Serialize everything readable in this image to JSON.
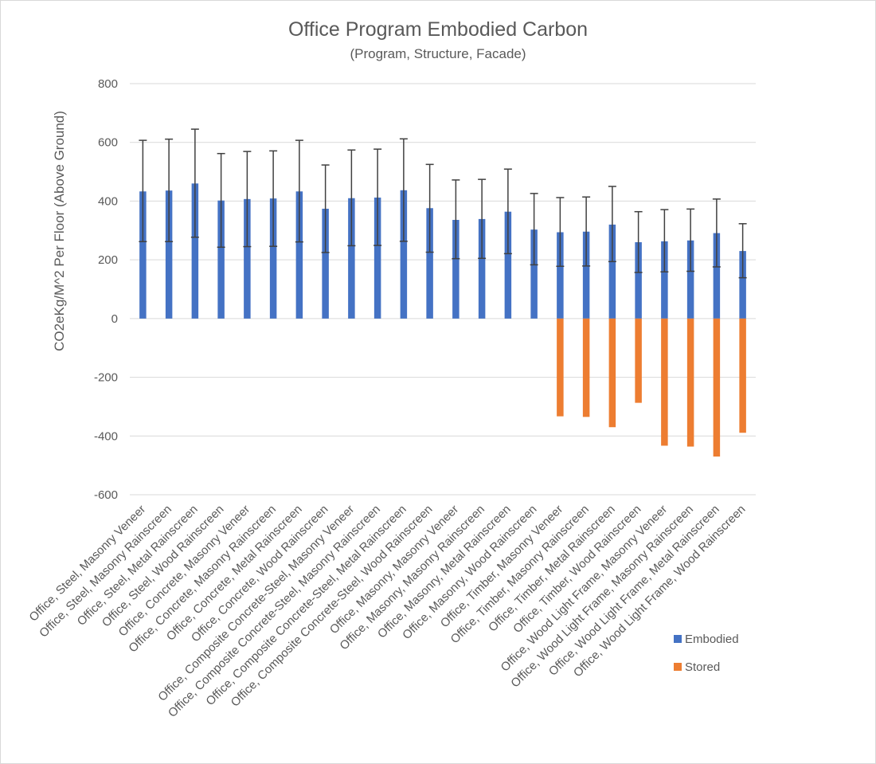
{
  "chart_data": {
    "type": "bar",
    "title": "Office Program Embodied Carbon",
    "subtitle": "(Program, Structure, Facade)",
    "xlabel": "",
    "ylabel": "CO2eKg/M^2 Per Floor (Above Ground)",
    "ylim": [
      -600,
      800
    ],
    "yticks": [
      -600,
      -400,
      -200,
      0,
      200,
      400,
      600,
      800
    ],
    "grid": true,
    "legend_position": "bottom-right",
    "categories": [
      "Office, Steel, Masonry Veneer",
      "Office, Steel, Masonry Rainscreen",
      "Office, Steel, Metal Rainscreen",
      "Office, Steel, Wood Rainscreen",
      "Office, Concrete, Masonry Veneer",
      "Office, Concrete, Masonry Rainscreen",
      "Office, Concrete, Metal Rainscreen",
      "Office, Concrete, Wood Rainscreen",
      "Office, Composite Concrete-Steel, Masonry Veneer",
      "Office, Composite Concrete-Steel, Masonry Rainscreen",
      "Office, Composite Concrete-Steel, Metal Rainscreen",
      "Office, Composite Concrete-Steel, Wood Rainscreen",
      "Office, Masonry, Masonry Veneer",
      "Office, Masonry, Masonry Rainscreen",
      "Office, Masonry, Metal Rainscreen",
      "Office, Masonry, Wood Rainscreen",
      "Office, Timber, Masonry Veneer",
      "Office, Timber, Masonry Rainscreen",
      "Office, Timber, Metal Rainscreen",
      "Office, Timber, Wood Rainscreen",
      "Office, Wood Light Frame, Masonry Veneer",
      "Office, Wood Light Frame, Masonry Rainscreen",
      "Office, Wood Light Frame, Metal Rainscreen",
      "Office, Wood Light Frame, Wood Rainscreen"
    ],
    "series": [
      {
        "name": "Embodied",
        "color": "#4472c4",
        "values": [
          433,
          436,
          460,
          402,
          407,
          409,
          433,
          374,
          410,
          412,
          437,
          376,
          336,
          339,
          364,
          303,
          294,
          296,
          320,
          260,
          263,
          266,
          291,
          230
        ],
        "error_low": [
          262,
          262,
          277,
          243,
          245,
          246,
          261,
          225,
          248,
          249,
          263,
          226,
          204,
          205,
          221,
          183,
          178,
          179,
          194,
          157,
          159,
          161,
          176,
          139
        ],
        "error_high": [
          607,
          611,
          645,
          562,
          569,
          571,
          607,
          523,
          574,
          577,
          612,
          525,
          472,
          474,
          509,
          426,
          412,
          414,
          450,
          364,
          371,
          373,
          407,
          323
        ]
      },
      {
        "name": "Stored",
        "color": "#ed7d31",
        "values": [
          0,
          0,
          0,
          0,
          0,
          0,
          0,
          0,
          0,
          0,
          0,
          0,
          0,
          0,
          0,
          0,
          -333,
          -335,
          -370,
          -287,
          -433,
          -436,
          -470,
          -389
        ]
      }
    ]
  }
}
